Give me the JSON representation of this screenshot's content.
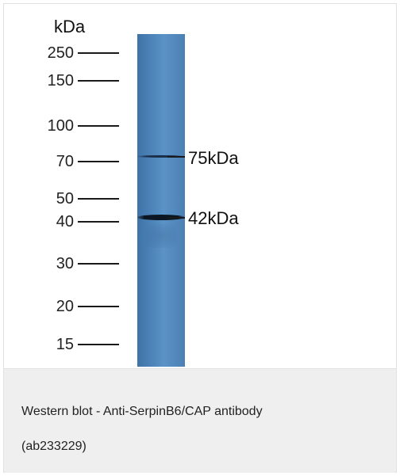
{
  "blot": {
    "unit_label": "kDa",
    "markers": [
      "250",
      "150",
      "100",
      "70",
      "50",
      "40",
      "30",
      "20",
      "15"
    ],
    "bands": [
      {
        "label": "75kDa"
      },
      {
        "label": "42kDa"
      }
    ],
    "lane_color": "#4f86bb"
  },
  "caption": {
    "line1": "Western blot - Anti-SerpinB6/CAP antibody",
    "line2": "(ab233229)"
  }
}
